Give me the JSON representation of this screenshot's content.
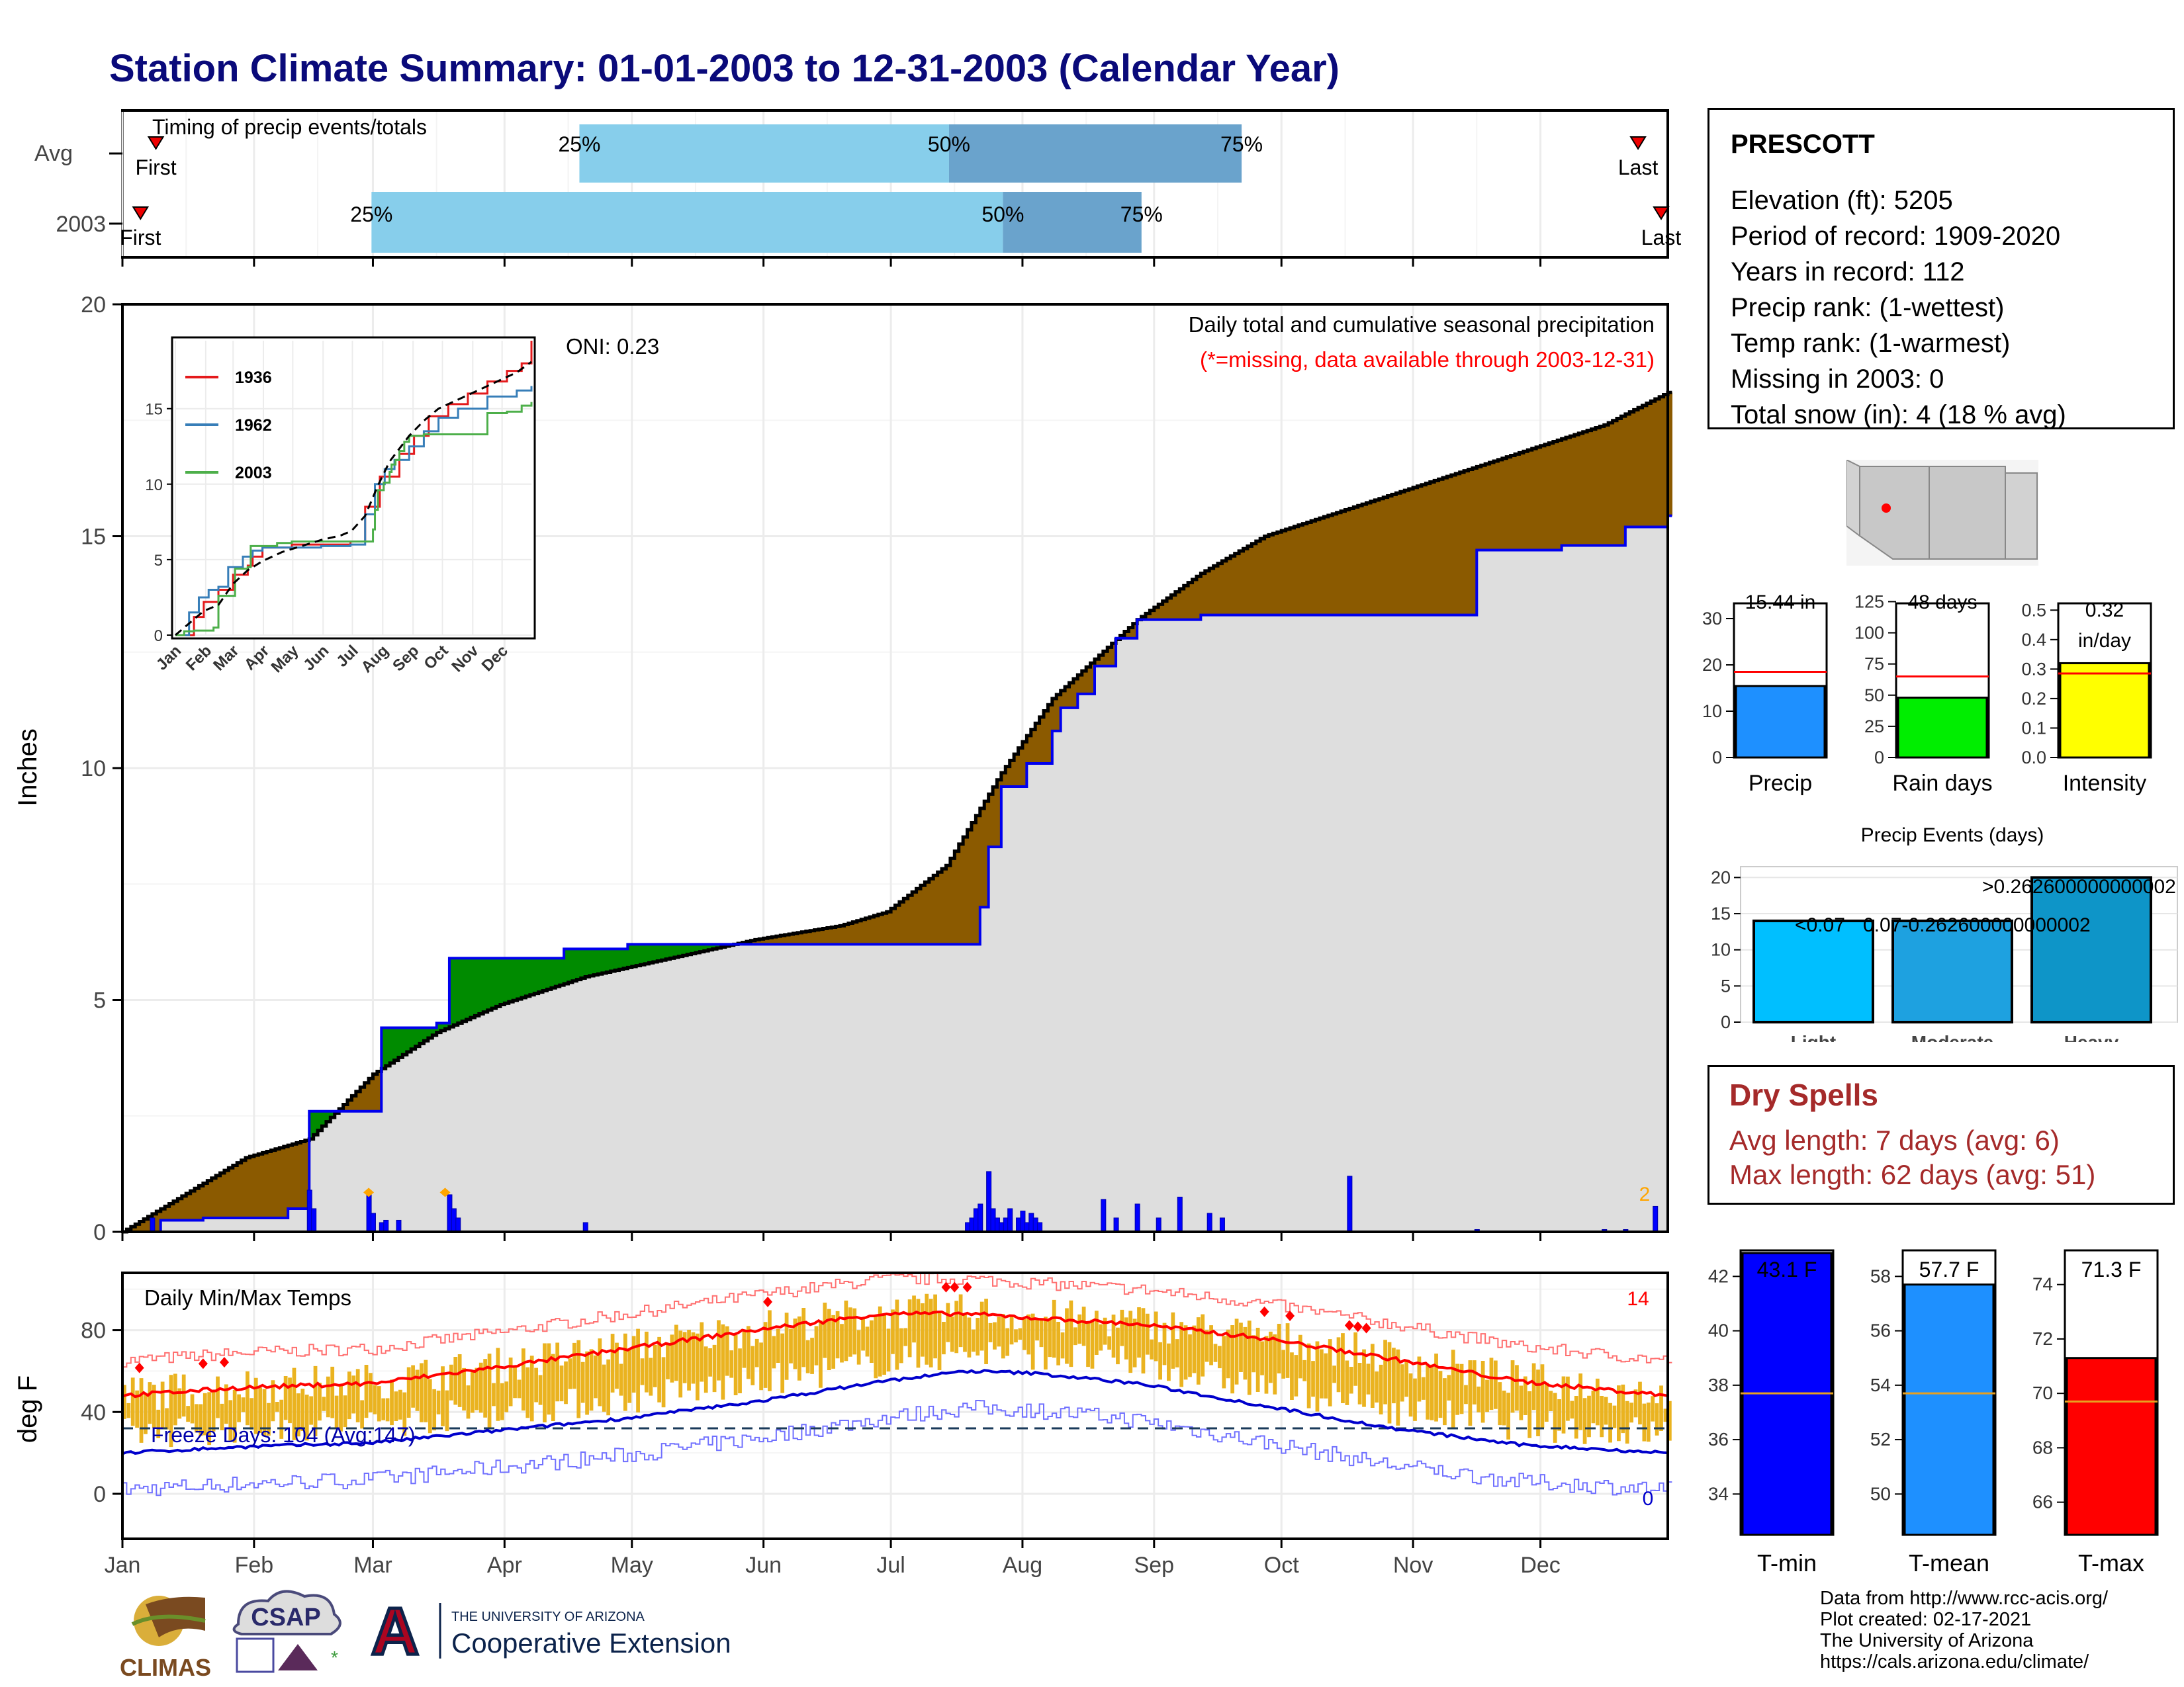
{
  "title": "Station Climate Summary: 01-01-2003 to 12-31-2003 (Calendar Year)",
  "station": {
    "name": "PRESCOTT",
    "lines": [
      "Elevation (ft): 5205",
      "Period of record: 1909-2020",
      "Years in record: 112",
      "Precip rank:  (1-wettest)",
      "Temp rank:  (1-warmest)",
      "Missing in 2003: 0",
      "Total snow (in): 4 (18 % avg)"
    ]
  },
  "colors": {
    "title": "#0a0a7a",
    "cum_above_avg": "#8b5a00",
    "cum_below_avg": "#008b00",
    "cum_area": "#dedede",
    "daily_bar": "#0000ff",
    "timing_light": "#87ceeb",
    "timing_dark": "#6aa3cc",
    "temp_bar": "#eab320",
    "tmax_avg": "#ff0000",
    "tmin_avg": "#0000cc",
    "dry_spell_text": "#a52a2a"
  },
  "timing_panel": {
    "title": "Timing of precip events/totals",
    "row_labels": [
      "Avg",
      "2003"
    ],
    "first_label": "First",
    "last_label": "Last",
    "pct_labels": [
      "25%",
      "50%",
      "75%"
    ],
    "avg": {
      "first": 0.02,
      "p25": 0.295,
      "p50": 0.535,
      "p75": 0.725,
      "last": 0.985
    },
    "y2003": {
      "first": 0.01,
      "p25": 0.16,
      "p50": 0.57,
      "p75": 0.66,
      "last": 1.0
    }
  },
  "precip_panel": {
    "ylabel": "Inches",
    "annotation1": "Daily total and cumulative seasonal precipitation",
    "annotation2": "(*=missing, data available through 2003-12-31)",
    "oni_label": "ONI: 0.23",
    "count_label": "2",
    "yticks": [
      "0",
      "5",
      "10",
      "15",
      "20"
    ]
  },
  "inset": {
    "legend": [
      "1936",
      "1962",
      "2003"
    ],
    "yticks": [
      "0",
      "5",
      "10",
      "15"
    ],
    "months": [
      "Jan",
      "Feb",
      "Mar",
      "Apr",
      "May",
      "Jun",
      "Jul",
      "Aug",
      "Sep",
      "Oct",
      "Nov",
      "Dec"
    ]
  },
  "bar_precip": {
    "value_label": "15.44 in",
    "label": "Precip",
    "value": 15.44,
    "avg": 18.5,
    "ymax": 35,
    "yticks": [
      "0",
      "10",
      "20",
      "30"
    ]
  },
  "bar_raindays": {
    "value_label": "48 days",
    "label": "Rain days",
    "value": 48,
    "avg": 65,
    "ymax": 130,
    "yticks": [
      "0",
      "25",
      "50",
      "75",
      "100",
      "125"
    ]
  },
  "bar_intensity": {
    "value_label_1": "0.32",
    "value_label_2": "in/day",
    "label": "Intensity",
    "value": 0.32,
    "avg": 0.285,
    "ymax": 0.55,
    "yticks": [
      "0.0",
      "0.1",
      "0.2",
      "0.3",
      "0.4",
      "0.5"
    ]
  },
  "precip_events": {
    "title": "Precip Events (days)",
    "categories": [
      "Light",
      "Moderate",
      "Heavy"
    ],
    "values": [
      14,
      14,
      20
    ],
    "labels": [
      "<0.07",
      "0.07-0.262600000000002",
      ">0.262600000000002"
    ],
    "yticks": [
      "0",
      "5",
      "10",
      "15",
      "20"
    ],
    "ymax": 21.5
  },
  "dry_spells": {
    "title": "Dry Spells",
    "avg_line": "Avg length: 7 days (avg: 6)",
    "max_line": "Max length: 62 days (avg: 51)"
  },
  "temp_panel": {
    "title": "Daily Min/Max Temps",
    "ylabel": "deg F",
    "freeze_label": "Freeze Days: 104 (Avg:147)",
    "count_max": "14",
    "count_min": "0",
    "yticks": [
      "0",
      "40",
      "80"
    ],
    "months": [
      "Jan",
      "Feb",
      "Mar",
      "Apr",
      "May",
      "Jun",
      "Jul",
      "Aug",
      "Sep",
      "Oct",
      "Nov",
      "Dec"
    ]
  },
  "tbar_min": {
    "value_label": "43.1 F",
    "label": "T-min",
    "value": 43.1,
    "avg": 37.7,
    "ylim": [
      32.5,
      43.2
    ],
    "yticks": [
      "34",
      "36",
      "38",
      "40",
      "42"
    ]
  },
  "tbar_mean": {
    "value_label": "57.7 F",
    "label": "T-mean",
    "value": 57.7,
    "avg": 53.7,
    "ylim": [
      48.5,
      59.2
    ],
    "yticks": [
      "50",
      "52",
      "54",
      "56",
      "58"
    ]
  },
  "tbar_max": {
    "value_label": "71.3 F",
    "label": "T-max",
    "value": 71.3,
    "avg": 69.7,
    "ylim": [
      64.8,
      75.5
    ],
    "yticks": [
      "66",
      "68",
      "70",
      "72",
      "74"
    ]
  },
  "footer": {
    "lines": [
      "Data from http://www.rcc-acis.org/",
      "Plot created: 02-17-2021",
      "The University of Arizona",
      "https://cals.arizona.edu/climate/"
    ],
    "logo_climas": "CLIMAS",
    "logo_csap": "CSAP",
    "logo_ua_small": "THE UNIVERSITY OF ARIZONA",
    "logo_ua_big": "Cooperative Extension"
  },
  "chart_data": [
    {
      "type": "area",
      "title": "Daily total and cumulative seasonal precipitation",
      "ylabel": "Inches",
      "ylim": [
        0,
        20
      ],
      "x_months": [
        "Jan",
        "Feb",
        "Mar",
        "Apr",
        "May",
        "Jun",
        "Jul",
        "Aug",
        "Sep",
        "Oct",
        "Nov",
        "Dec"
      ],
      "series": [
        {
          "name": "avg_cumulative",
          "x_doy": [
            1,
            30,
            45,
            60,
            75,
            90,
            110,
            130,
            150,
            170,
            181,
            195,
            208,
            220,
            240,
            255,
            270,
            290,
            310,
            330,
            350,
            365
          ],
          "values": [
            0,
            1.6,
            2.0,
            3.4,
            4.3,
            4.9,
            5.5,
            5.9,
            6.3,
            6.6,
            6.9,
            7.9,
            9.9,
            11.5,
            13.2,
            14.2,
            15.0,
            15.6,
            16.2,
            16.8,
            17.4,
            18.1
          ]
        },
        {
          "name": "2003_cumulative",
          "x_doy": [
            1,
            10,
            20,
            40,
            45,
            59,
            62,
            70,
            75,
            78,
            90,
            105,
            120,
            140,
            160,
            200,
            203,
            205,
            208,
            214,
            220,
            222,
            226,
            230,
            235,
            240,
            255,
            260,
            290,
            310,
            320,
            330,
            340,
            355,
            365
          ],
          "values": [
            0,
            0.25,
            0.3,
            0.5,
            2.6,
            2.6,
            4.4,
            4.4,
            4.5,
            5.9,
            5.9,
            6.1,
            6.2,
            6.2,
            6.2,
            6.2,
            7.0,
            8.3,
            9.6,
            10.1,
            10.8,
            11.3,
            11.6,
            12.2,
            12.8,
            13.2,
            13.3,
            13.3,
            13.3,
            13.3,
            14.7,
            14.7,
            14.8,
            15.2,
            15.44
          ]
        },
        {
          "name": "daily_precip",
          "x_doy": [
            8,
            45,
            46,
            59,
            60,
            62,
            63,
            66,
            78,
            79,
            80,
            110,
            200,
            201,
            202,
            203,
            205,
            206,
            207,
            208,
            209,
            210,
            212,
            213,
            214,
            215,
            216,
            217,
            232,
            235,
            240,
            245,
            250,
            257,
            260,
            290,
            320,
            350,
            355,
            362
          ],
          "values": [
            0.3,
            0.9,
            0.5,
            0.8,
            0.4,
            0.2,
            0.25,
            0.25,
            0.8,
            0.5,
            0.3,
            0.2,
            0.2,
            0.3,
            0.5,
            0.6,
            1.3,
            0.5,
            0.3,
            0.2,
            0.3,
            0.5,
            0.3,
            0.45,
            0.2,
            0.4,
            0.3,
            0.2,
            0.7,
            0.3,
            0.6,
            0.3,
            0.75,
            0.4,
            0.3,
            1.2,
            0.05,
            0.05,
            0.05,
            0.55
          ]
        }
      ]
    },
    {
      "type": "line",
      "title": "Daily Min/Max Temps",
      "ylabel": "deg F",
      "yticks": [
        0,
        40,
        80
      ],
      "freeze_line": 32,
      "series": [
        {
          "name": "avg_tmax",
          "x_doy": [
            1,
            30,
            60,
            90,
            120,
            150,
            180,
            200,
            215,
            240,
            270,
            300,
            330,
            365
          ],
          "values": [
            48,
            52,
            54,
            62,
            71,
            80,
            88,
            88,
            86,
            83,
            76,
            66,
            55,
            48
          ]
        },
        {
          "name": "avg_tmin",
          "x_doy": [
            1,
            30,
            60,
            90,
            120,
            150,
            180,
            200,
            215,
            240,
            270,
            300,
            330,
            365
          ],
          "values": [
            20,
            23,
            25,
            31,
            37,
            45,
            55,
            60,
            59,
            54,
            43,
            32,
            24,
            20
          ]
        }
      ]
    },
    {
      "type": "bar",
      "title": "Precip Events (days)",
      "categories": [
        "Light",
        "Moderate",
        "Heavy"
      ],
      "values": [
        14,
        14,
        20
      ]
    }
  ]
}
